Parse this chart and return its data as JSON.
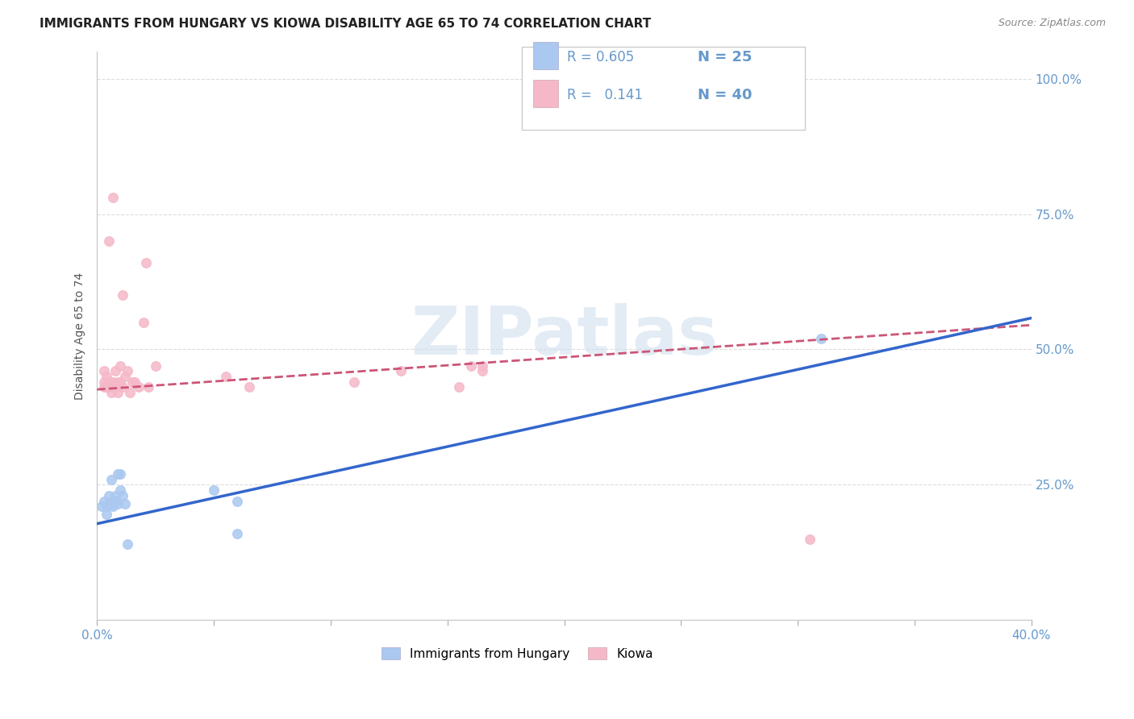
{
  "title": "IMMIGRANTS FROM HUNGARY VS KIOWA DISABILITY AGE 65 TO 74 CORRELATION CHART",
  "source": "Source: ZipAtlas.com",
  "ylabel": "Disability Age 65 to 74",
  "xlim": [
    0.0,
    0.4
  ],
  "ylim": [
    0.0,
    1.05
  ],
  "hungary_scatter_x": [
    0.002,
    0.003,
    0.004,
    0.004,
    0.005,
    0.005,
    0.005,
    0.006,
    0.006,
    0.007,
    0.007,
    0.007,
    0.008,
    0.008,
    0.009,
    0.009,
    0.01,
    0.01,
    0.011,
    0.012,
    0.013,
    0.05,
    0.06,
    0.06,
    0.31
  ],
  "hungary_scatter_y": [
    0.21,
    0.22,
    0.195,
    0.21,
    0.215,
    0.215,
    0.23,
    0.26,
    0.215,
    0.21,
    0.215,
    0.22,
    0.22,
    0.23,
    0.215,
    0.27,
    0.24,
    0.27,
    0.23,
    0.215,
    0.14,
    0.24,
    0.22,
    0.16,
    0.52
  ],
  "kiowa_scatter_x": [
    0.003,
    0.003,
    0.003,
    0.004,
    0.004,
    0.005,
    0.005,
    0.005,
    0.006,
    0.006,
    0.007,
    0.007,
    0.007,
    0.008,
    0.008,
    0.009,
    0.009,
    0.01,
    0.01,
    0.011,
    0.011,
    0.012,
    0.013,
    0.014,
    0.015,
    0.016,
    0.018,
    0.02,
    0.021,
    0.022,
    0.025,
    0.055,
    0.065,
    0.11,
    0.13,
    0.155,
    0.16,
    0.165,
    0.165,
    0.305
  ],
  "kiowa_scatter_y": [
    0.43,
    0.44,
    0.46,
    0.43,
    0.45,
    0.43,
    0.44,
    0.7,
    0.42,
    0.43,
    0.43,
    0.44,
    0.78,
    0.43,
    0.46,
    0.44,
    0.42,
    0.44,
    0.47,
    0.43,
    0.6,
    0.45,
    0.46,
    0.42,
    0.44,
    0.44,
    0.43,
    0.55,
    0.66,
    0.43,
    0.47,
    0.45,
    0.43,
    0.44,
    0.46,
    0.43,
    0.47,
    0.46,
    0.47,
    0.15
  ],
  "hungary_line_x0": 0.0,
  "hungary_line_x1": 0.4,
  "hungary_line_y0": 0.178,
  "hungary_line_y1": 0.558,
  "kiowa_line_x0": 0.0,
  "kiowa_line_x1": 0.4,
  "kiowa_line_y0": 0.426,
  "kiowa_line_y1": 0.545,
  "watermark": "ZIPatlas",
  "background_color": "#ffffff",
  "scatter_size": 70,
  "hungary_color": "#aac8f0",
  "kiowa_color": "#f5b8c8",
  "line_hungary_color": "#3366cc",
  "line_kiowa_color": "#cc5577",
  "grid_color": "#dddddd",
  "tick_color": "#6699cc",
  "legend_R1": "0.605",
  "legend_N1": "25",
  "legend_R2": "0.141",
  "legend_N2": "40",
  "legend_label1": "Immigrants from Hungary",
  "legend_label2": "Kiowa"
}
